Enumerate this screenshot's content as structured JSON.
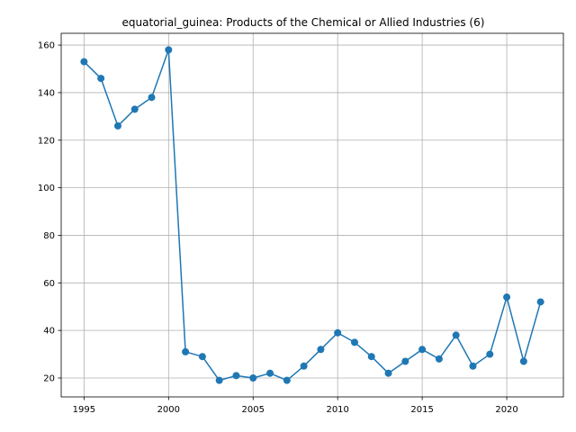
{
  "chart_data": {
    "type": "line",
    "title": "equatorial_guinea: Products of the Chemical or Allied Industries (6)",
    "xlabel": "",
    "ylabel": "",
    "x": [
      1995,
      1996,
      1997,
      1998,
      1999,
      2000,
      2001,
      2002,
      2003,
      2004,
      2005,
      2006,
      2007,
      2008,
      2009,
      2010,
      2011,
      2012,
      2013,
      2014,
      2015,
      2016,
      2017,
      2018,
      2019,
      2020,
      2021,
      2022
    ],
    "series": [
      {
        "values": [
          153,
          146,
          126,
          133,
          138,
          158,
          31,
          29,
          19,
          21,
          20,
          22,
          19,
          25,
          32,
          39,
          35,
          29,
          22,
          27,
          32,
          28,
          38,
          25,
          30,
          54,
          27,
          52
        ],
        "color": "#1f77b4",
        "marker": "circle"
      }
    ],
    "xlim": [
      1993.65,
      2023.35
    ],
    "ylim": [
      12.05,
      164.95
    ],
    "xticks": [
      1995,
      2000,
      2005,
      2010,
      2015,
      2020
    ],
    "yticks": [
      20,
      40,
      60,
      80,
      100,
      120,
      140,
      160
    ],
    "grid": true,
    "legend": "none"
  }
}
